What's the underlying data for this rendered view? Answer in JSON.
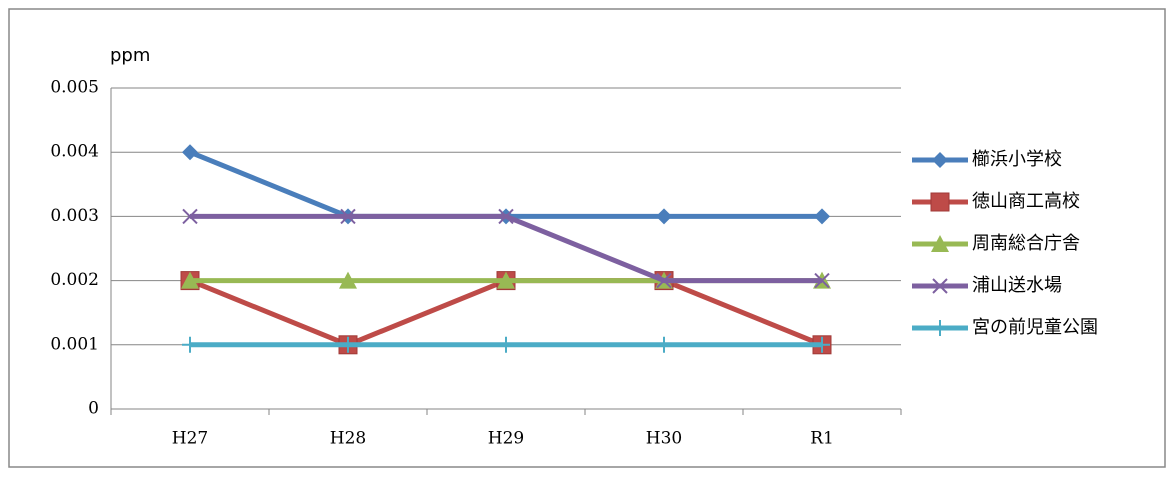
{
  "chart_data": {
    "type": "line",
    "y_label": "ppm",
    "categories": [
      "H27",
      "H28",
      "H29",
      "H30",
      "R1"
    ],
    "series": [
      {
        "name": "櫛浜小学校",
        "color": "#4a7ebb",
        "marker": "diamond",
        "values": [
          0.004,
          0.003,
          0.003,
          0.003,
          0.003
        ]
      },
      {
        "name": "徳山商工高校",
        "color": "#be4b48",
        "marker": "square",
        "values": [
          0.002,
          0.001,
          0.002,
          0.002,
          0.001
        ]
      },
      {
        "name": "周南総合庁舎",
        "color": "#98b954",
        "marker": "triangle",
        "values": [
          0.002,
          0.002,
          0.002,
          0.002,
          0.002
        ]
      },
      {
        "name": "浦山送水場",
        "color": "#7d60a0",
        "marker": "x",
        "values": [
          0.003,
          0.003,
          0.003,
          0.002,
          0.002
        ]
      },
      {
        "name": "宮の前児童公園",
        "color": "#4bacc6",
        "marker": "plus",
        "values": [
          0.001,
          0.001,
          0.001,
          0.001,
          0.001
        ]
      }
    ],
    "ylim": [
      0,
      0.005
    ],
    "yticks": [
      0,
      0.001,
      0.002,
      0.003,
      0.004,
      0.005
    ],
    "grid": true,
    "legend": "right"
  }
}
